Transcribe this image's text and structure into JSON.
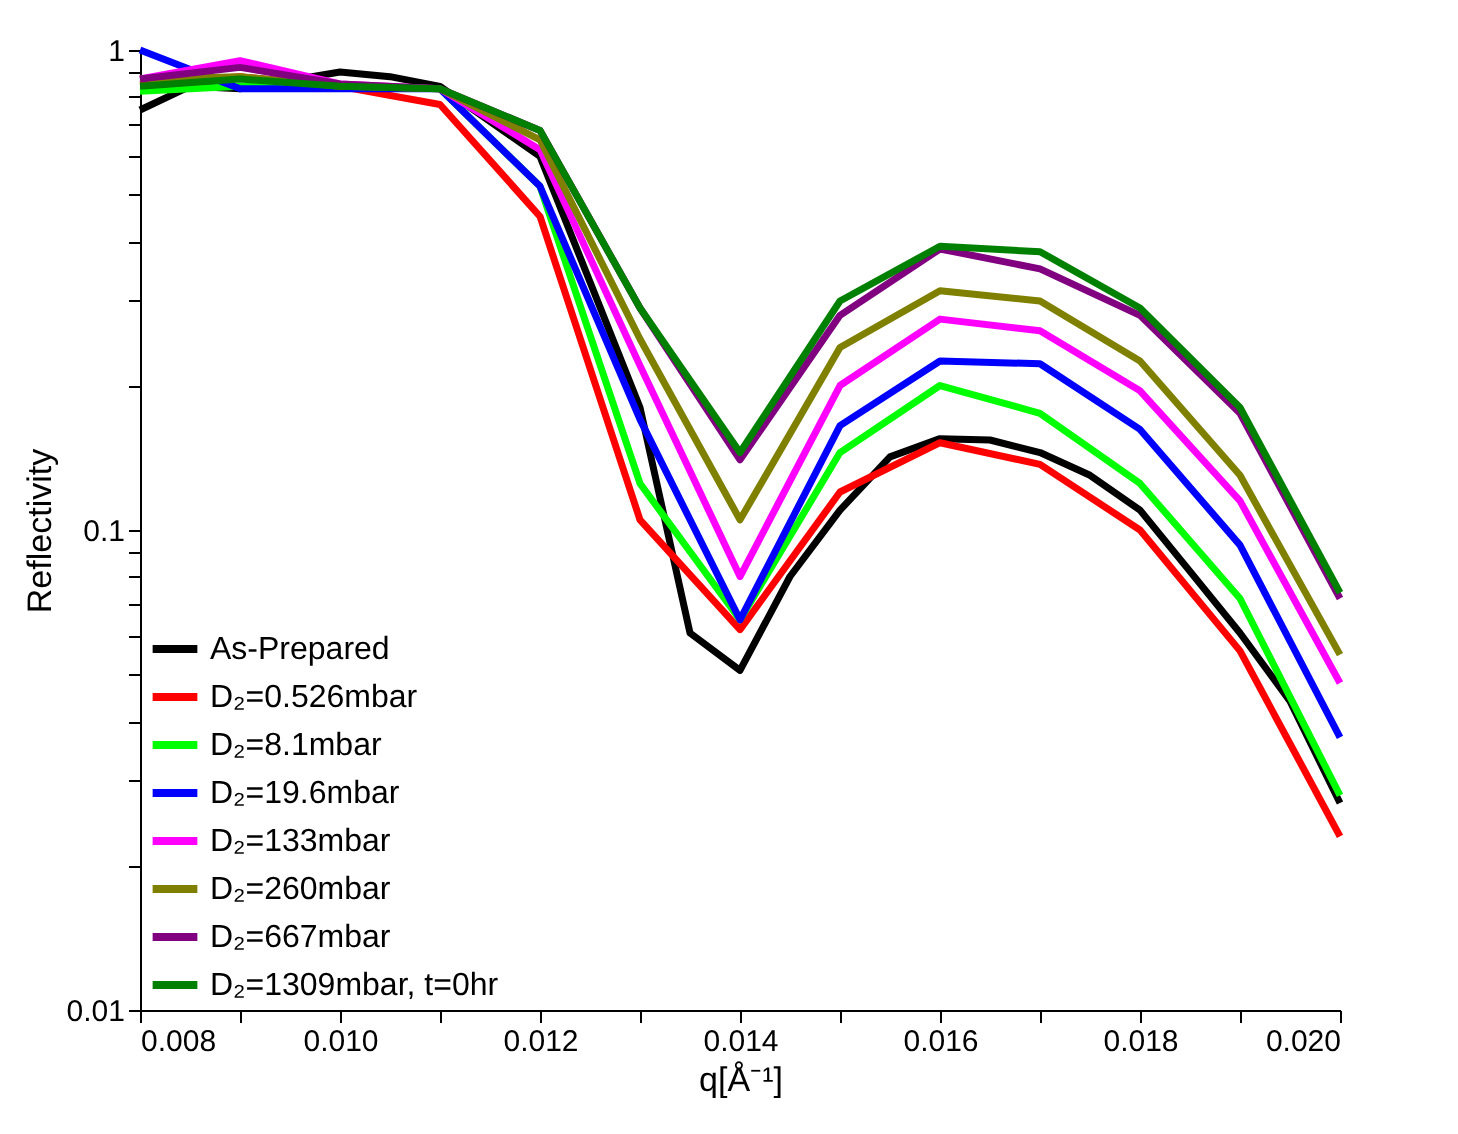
{
  "chart_data": {
    "type": "line",
    "xlabel": "q[Å⁻¹]",
    "ylabel": "Reflectivity",
    "log": "y",
    "grid": false,
    "legend": "bottom left",
    "marker": "none",
    "line_style": "solid",
    "x": [
      0.008,
      0.009,
      0.01,
      0.011,
      0.012,
      0.013,
      0.014,
      0.015,
      0.016,
      0.017,
      0.018,
      0.019,
      0.02
    ],
    "xlim": [
      0.008,
      0.02
    ],
    "ylim": [
      0.01,
      1
    ],
    "xticks": [
      0.008,
      {
        "value": 0.009,
        "label": null
      },
      {
        "value": 0.01,
        "label": "0.010"
      },
      {
        "value": 0.011,
        "label": null
      },
      0.012,
      {
        "value": 0.013,
        "label": null
      },
      0.014,
      {
        "value": 0.015,
        "label": null
      },
      0.016,
      {
        "value": 0.017,
        "label": null
      },
      0.018,
      {
        "value": 0.019,
        "label": null
      },
      {
        "value": 0.02,
        "label": "0.020"
      }
    ],
    "yticks": [
      0.01,
      {
        "value": 0.02,
        "label": null
      },
      {
        "value": 0.03,
        "label": null
      },
      {
        "value": 0.04,
        "label": null
      },
      {
        "value": 0.05,
        "label": null
      },
      {
        "value": 0.06,
        "label": null
      },
      {
        "value": 0.07,
        "label": null
      },
      {
        "value": 0.08,
        "label": null
      },
      {
        "value": 0.09,
        "label": null
      },
      0.1,
      {
        "value": 0.2,
        "label": null
      },
      {
        "value": 0.3,
        "label": null
      },
      {
        "value": 0.4,
        "label": null
      },
      {
        "value": 0.5,
        "label": null
      },
      {
        "value": 0.6,
        "label": null
      },
      {
        "value": 0.7,
        "label": null
      },
      {
        "value": 0.8,
        "label": null
      },
      {
        "value": 0.9,
        "label": null
      },
      1
    ],
    "series": [
      {
        "name": "As-Prepared",
        "color": "#000000",
        "x": [
          0.008,
          0.0085,
          0.009,
          0.01,
          0.0105,
          0.011,
          0.012,
          0.013,
          0.0135,
          0.014,
          0.0145,
          0.015,
          0.0155,
          0.016,
          0.0165,
          0.017,
          0.0175,
          0.018,
          0.0185,
          0.019,
          0.0195,
          0.02
        ],
        "values": [
          0.75,
          0.84,
          0.83,
          0.9,
          0.88,
          0.84,
          0.6,
          0.18,
          0.061,
          0.051,
          0.08,
          0.11,
          0.142,
          0.155,
          0.154,
          0.145,
          0.13,
          0.11,
          0.082,
          0.061,
          0.044,
          0.027
        ]
      },
      {
        "name": "D₂=0.526mbar",
        "color": "#ff0000",
        "values": [
          0.85,
          0.88,
          0.84,
          0.77,
          0.45,
          0.105,
          0.062,
          0.12,
          0.152,
          0.137,
          0.1,
          0.056,
          0.023
        ]
      },
      {
        "name": "D₂=8.1mbar",
        "color": "#00ff00",
        "values": [
          0.82,
          0.84,
          0.84,
          0.83,
          0.52,
          0.125,
          0.065,
          0.145,
          0.2,
          0.175,
          0.125,
          0.072,
          0.028
        ]
      },
      {
        "name": "D₂=19.6mbar",
        "color": "#0000ff",
        "values": [
          1.0,
          0.83,
          0.83,
          0.83,
          0.52,
          0.17,
          0.065,
          0.165,
          0.225,
          0.222,
          0.162,
          0.093,
          0.037
        ]
      },
      {
        "name": "D₂=133mbar",
        "color": "#ff00ff",
        "values": [
          0.87,
          0.95,
          0.85,
          0.83,
          0.62,
          0.22,
          0.08,
          0.2,
          0.275,
          0.26,
          0.195,
          0.115,
          0.048
        ]
      },
      {
        "name": "D₂=260mbar",
        "color": "#808000",
        "values": [
          0.87,
          0.88,
          0.84,
          0.83,
          0.65,
          0.25,
          0.105,
          0.24,
          0.315,
          0.3,
          0.225,
          0.13,
          0.055
        ]
      },
      {
        "name": "D₂=667mbar",
        "color": "#800080",
        "values": [
          0.87,
          0.92,
          0.85,
          0.83,
          0.68,
          0.29,
          0.14,
          0.28,
          0.385,
          0.35,
          0.28,
          0.175,
          0.072
        ]
      },
      {
        "name": "D₂=1309mbar, t=0hr",
        "color": "#008000",
        "values": [
          0.84,
          0.87,
          0.84,
          0.83,
          0.68,
          0.29,
          0.145,
          0.3,
          0.39,
          0.38,
          0.29,
          0.18,
          0.074
        ]
      }
    ]
  }
}
